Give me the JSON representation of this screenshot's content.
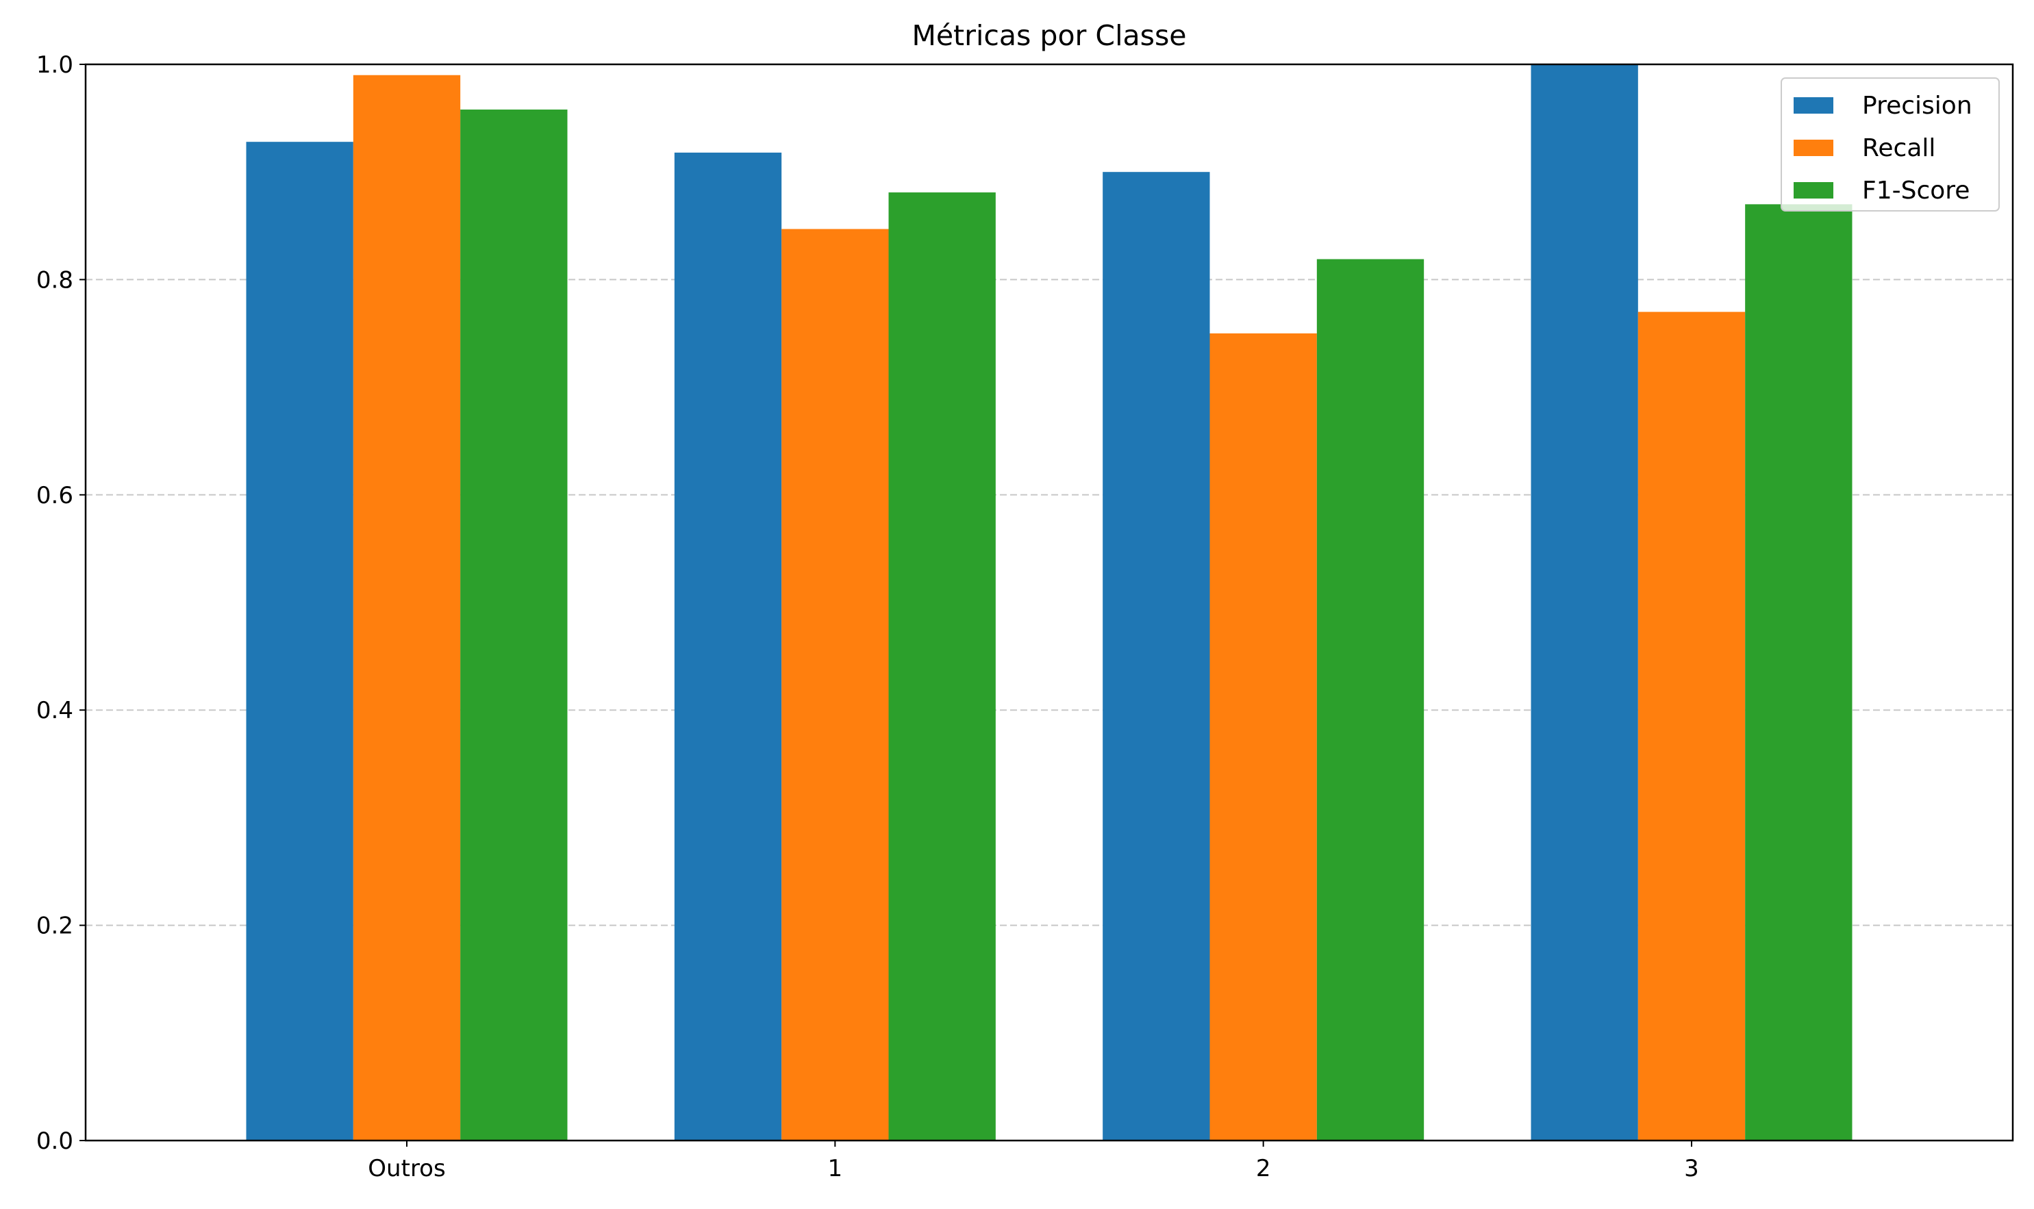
{
  "chart_data": {
    "type": "bar",
    "title": "Métricas por Classe",
    "xlabel": "",
    "ylabel": "",
    "categories": [
      "Outros",
      "1",
      "2",
      "3"
    ],
    "series": [
      {
        "name": "Precision",
        "color": "#1f77b4",
        "values": [
          0.928,
          0.918,
          0.9,
          1.0
        ]
      },
      {
        "name": "Recall",
        "color": "#ff7f0e",
        "values": [
          0.99,
          0.847,
          0.75,
          0.77
        ]
      },
      {
        "name": "F1-Score",
        "color": "#2ca02c",
        "values": [
          0.958,
          0.881,
          0.819,
          0.87
        ]
      }
    ],
    "ylim": [
      0,
      1.0
    ],
    "yticks": [
      "0.0",
      "0.2",
      "0.4",
      "0.6",
      "0.8",
      "1.0"
    ],
    "grid": {
      "axis": "y",
      "style": "dashed",
      "color": "#c8c8c8"
    },
    "legend": {
      "placement": "top-right"
    }
  }
}
